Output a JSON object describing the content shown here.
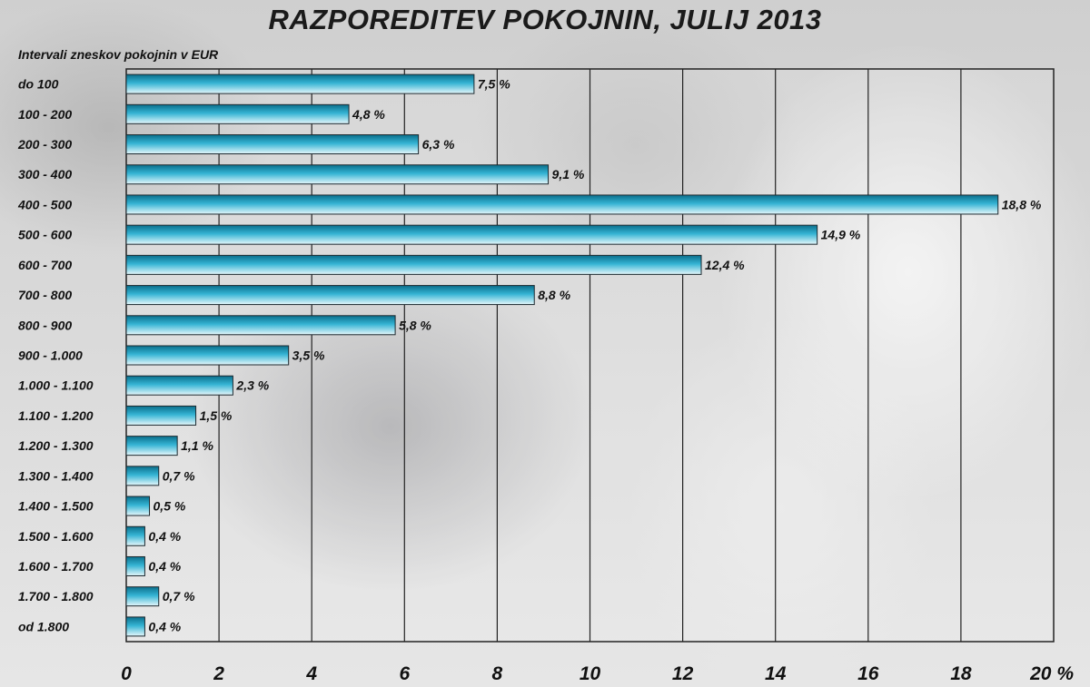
{
  "chart_data": {
    "type": "bar",
    "orientation": "horizontal",
    "title": "RAZPOREDITEV POKOJNIN, JULIJ 2013",
    "subtitle": "Intervali zneskov pokojnin v EUR",
    "categories": [
      "do 100",
      "100 - 200",
      "200 - 300",
      "300 - 400",
      "400 - 500",
      "500 - 600",
      "600 - 700",
      "700 - 800",
      "800 - 900",
      "900 - 1.000",
      "1.000 - 1.100",
      "1.100 - 1.200",
      "1.200 - 1.300",
      "1.300 - 1.400",
      "1.400 - 1.500",
      "1.500 - 1.600",
      "1.600 - 1.700",
      "1.700 - 1.800",
      "od 1.800"
    ],
    "values": [
      7.5,
      4.8,
      6.3,
      9.1,
      18.8,
      14.9,
      12.4,
      8.8,
      5.8,
      3.5,
      2.3,
      1.5,
      1.1,
      0.7,
      0.5,
      0.4,
      0.4,
      0.7,
      0.4
    ],
    "data_labels": [
      "7,5 %",
      "4,8 %",
      "6,3 %",
      "9,1 %",
      "18,8 %",
      "14,9 %",
      "12,4 %",
      "8,8 %",
      "5,8 %",
      "3,5 %",
      "2,3 %",
      "1,5 %",
      "1,1 %",
      "0,7 %",
      "0,5 %",
      "0,4 %",
      "0,4 %",
      "0,7 %",
      "0,4 %"
    ],
    "xticks": [
      "0",
      "2",
      "4",
      "6",
      "8",
      "10",
      "12",
      "14",
      "16",
      "18",
      "20 %"
    ],
    "xlim": [
      0,
      20
    ],
    "grid": "vertical",
    "bar_color_top": "#0a6f8c",
    "bar_color_mid": "#35b4d4",
    "bar_color_bottom": "#e6f7fb"
  }
}
